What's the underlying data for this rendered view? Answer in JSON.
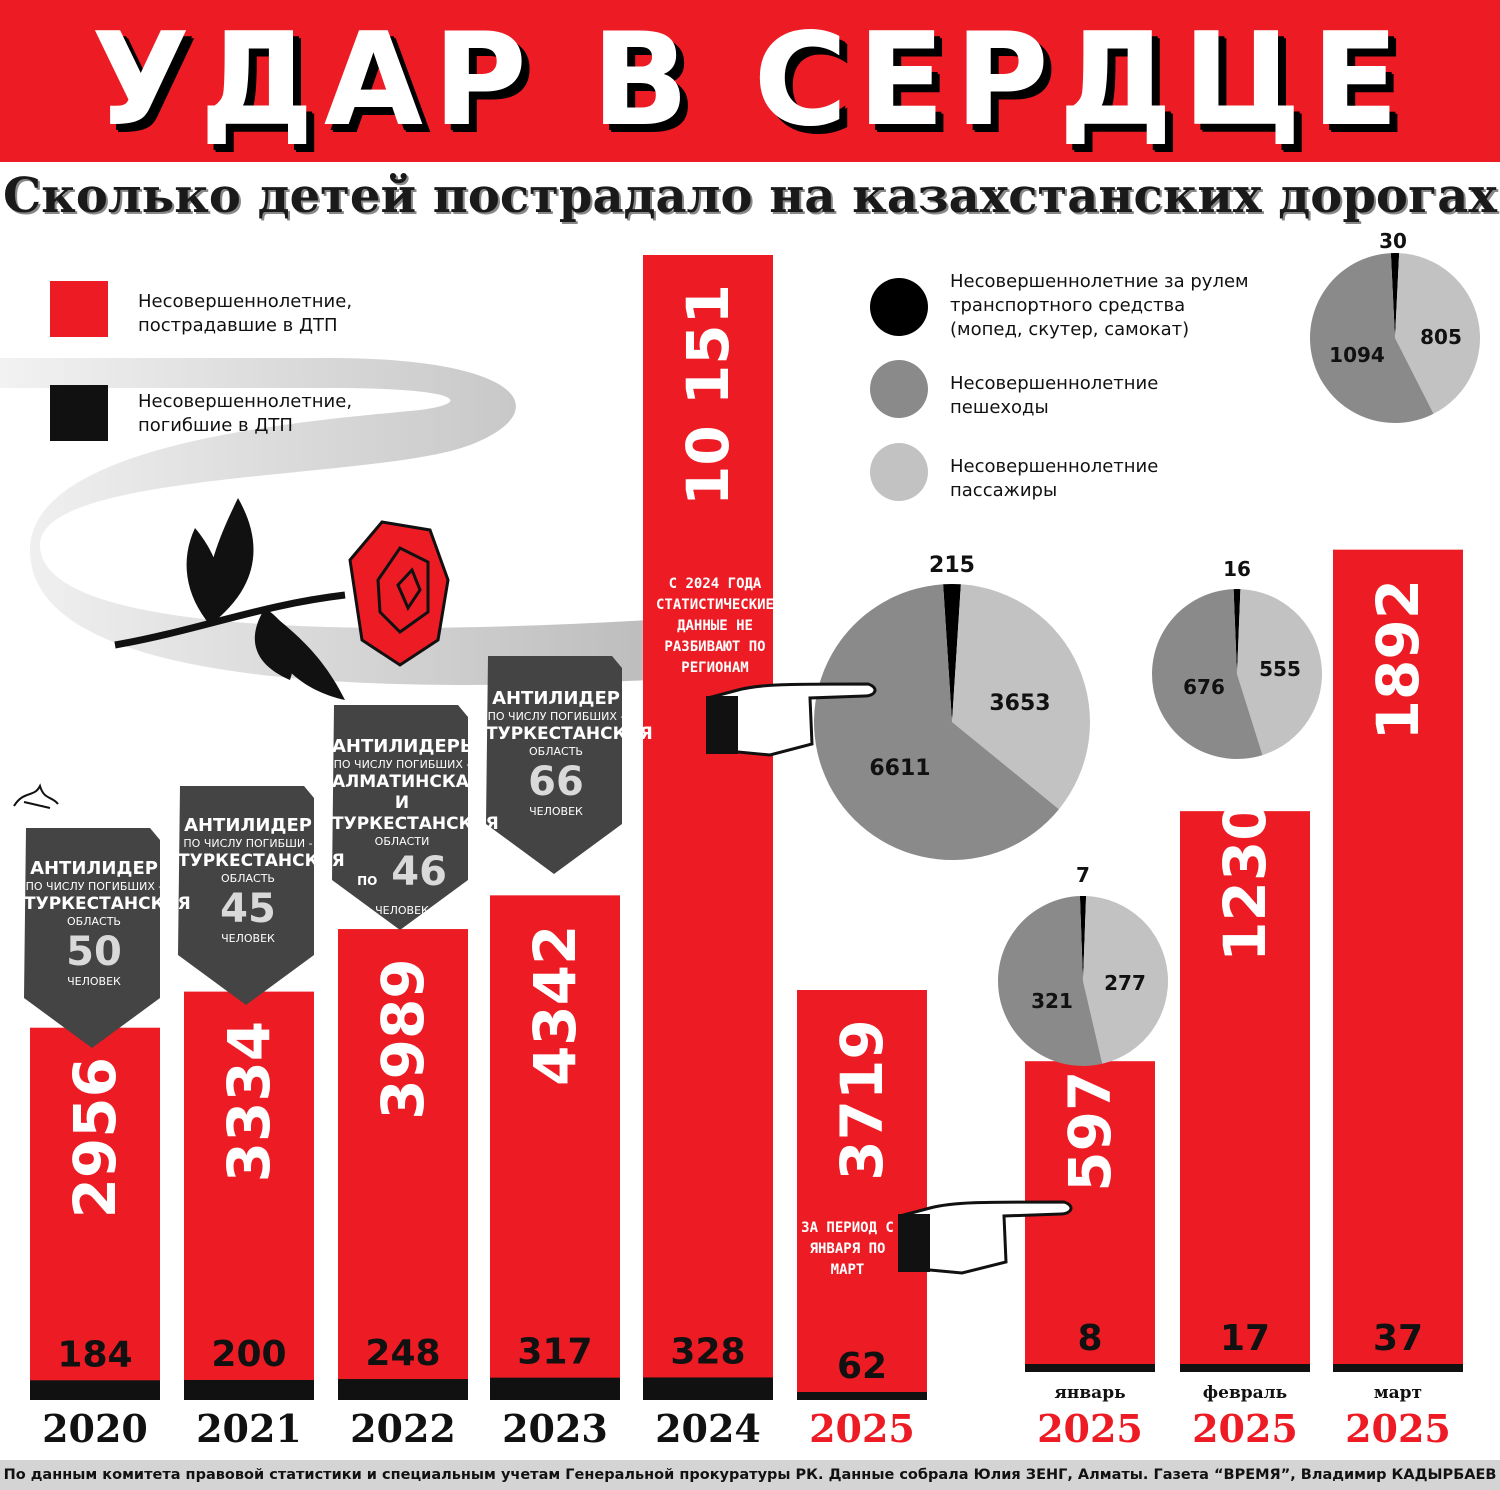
{
  "header": {
    "title": "УДАР В СЕРДЦЕ",
    "subtitle": "Сколько детей пострадало на казахстанских дорогах"
  },
  "legend": {
    "injured": "Несовершеннолетние, пострадавшие в ДТП",
    "killed": "Несовершеннолетние, погибшие в ДТП",
    "drivers": "Несовершеннолетние за рулем транспортного средства (мопед, скутер, самокат)",
    "pedestrians": "Несовершеннолетние пешеходы",
    "passengers": "Несовершеннолетние пассажиры"
  },
  "notes": {
    "no_regions": "С 2024 ГОДА СТАТИСТИЧЕСКИЕ ДАННЫЕ НЕ РАЗБИВАЮТ ПО РЕГИОНАМ",
    "period": "ЗА ПЕРИОД С ЯНВАРЯ ПО МАРТ"
  },
  "leaders": [
    {
      "title": "АНТИЛИДЕР",
      "sub": "ПО ЧИСЛУ ПОГИБШИХ -",
      "region": "ТУРКЕСТАНСКАЯ",
      "region_sub": "ОБЛАСТЬ",
      "prefix": "",
      "number": "50",
      "unit": "ЧЕЛОВЕК"
    },
    {
      "title": "АНТИЛИДЕР",
      "sub": "ПО ЧИСЛУ ПОГИБШИ -",
      "region": "ТУРКЕСТАНСКАЯ",
      "region_sub": "ОБЛАСТЬ",
      "prefix": "",
      "number": "45",
      "unit": "ЧЕЛОВЕК"
    },
    {
      "title": "АНТИЛИДЕРЫ",
      "sub": "ПО ЧИСЛУ ПОГИБШИХ -",
      "region": "АЛМАТИНСКАЯ И ТУРКЕСТАНСКАЯ",
      "region_sub": "ОБЛАСТИ",
      "prefix": "ПО",
      "number": "46",
      "unit": "ЧЕЛОВЕК"
    },
    {
      "title": "АНТИЛИДЕР",
      "sub": "ПО ЧИСЛУ ПОГИБШИХ -",
      "region": "ТУРКЕСТАНСКАЯ",
      "region_sub": "ОБЛАСТЬ",
      "prefix": "",
      "number": "66",
      "unit": "ЧЕЛОВЕК"
    }
  ],
  "colors": {
    "red": "#ed1c24",
    "black": "#111111",
    "drivers": "#000000",
    "pedestrians": "#8a8a8a",
    "passengers": "#c2c2c2"
  },
  "chart_data": [
    {
      "type": "bar",
      "categories": [
        "2020",
        "2021",
        "2022",
        "2023",
        "2024",
        "2025",
        "январь 2025",
        "февраль 2025",
        "март 2025"
      ],
      "category_labels": [
        {
          "month": "",
          "year": "2020"
        },
        {
          "month": "",
          "year": "2021"
        },
        {
          "month": "",
          "year": "2022"
        },
        {
          "month": "",
          "year": "2023"
        },
        {
          "month": "",
          "year": "2024"
        },
        {
          "month": "",
          "year": "2025"
        },
        {
          "month": "январь",
          "year": "2025"
        },
        {
          "month": "февраль",
          "year": "2025"
        },
        {
          "month": "март",
          "year": "2025"
        }
      ],
      "series": [
        {
          "name": "Несовершеннолетние, пострадавшие в ДТП",
          "values": [
            2956,
            3334,
            3989,
            4342,
            10151,
            3719,
            597,
            1230,
            1892
          ]
        },
        {
          "name": "Несовершеннолетние, погибшие в ДТП",
          "values": [
            184,
            200,
            248,
            317,
            328,
            62,
            8,
            17,
            37
          ]
        }
      ],
      "value_labels": [
        "2956",
        "3334",
        "3989",
        "4342",
        "10 151",
        "3719",
        "597",
        "1230",
        "1892"
      ]
    },
    {
      "type": "pie",
      "category": "2024",
      "labels": [
        "Несовершеннолетние за рулем транспортного средства (мопед, скутер, самокат)",
        "Несовершеннолетние пешеходы",
        "Несовершеннолетние пассажиры"
      ],
      "values": [
        215,
        6611,
        3653
      ]
    },
    {
      "type": "pie",
      "category": "январь 2025",
      "labels": [
        "Несовершеннолетние за рулем транспортного средства (мопед, скутер, самокат)",
        "Несовершеннолетние пешеходы",
        "Несовершеннолетние пассажиры"
      ],
      "values": [
        7,
        321,
        277
      ]
    },
    {
      "type": "pie",
      "category": "февраль 2025",
      "labels": [
        "Несовершеннолетние за рулем транспортного средства (мопед, скутер, самокат)",
        "Несовершеннолетние пешеходы",
        "Несовершеннолетние пассажиры"
      ],
      "values": [
        16,
        676,
        555
      ]
    },
    {
      "type": "pie",
      "category": "март 2025",
      "labels": [
        "Несовершеннолетние за рулем транспортного средства (мопед, скутер, самокат)",
        "Несовершеннолетние пешеходы",
        "Несовершеннолетние пассажиры"
      ],
      "values": [
        30,
        1094,
        805
      ]
    }
  ],
  "footer": "По данным комитета правовой статистики и специальным учетам Генеральной прокуратуры РК. Данные собрала Юлия ЗЕНГ, Алматы. Газета “ВРЕМЯ”, Владимир КАДЫРБАЕВ"
}
